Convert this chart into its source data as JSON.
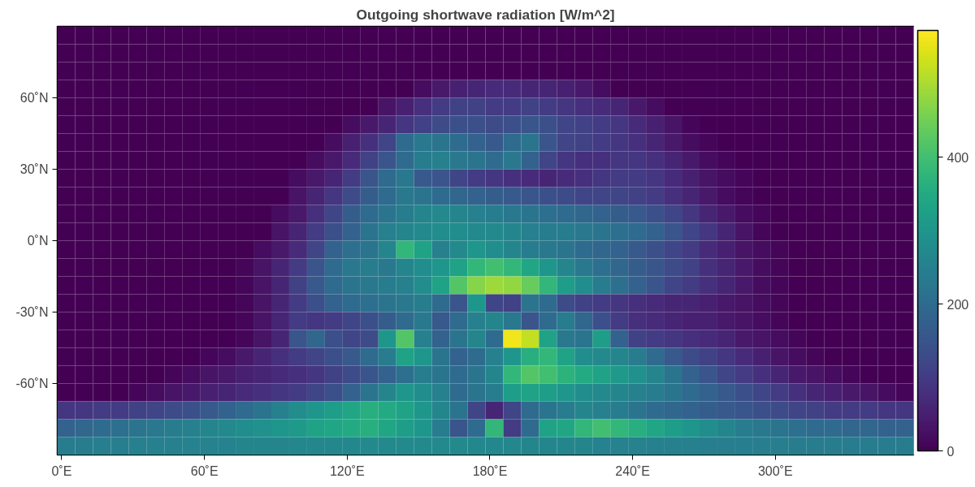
{
  "chart_data": {
    "type": "heatmap",
    "title": "Outgoing shortwave radiation [W/m^2]",
    "x": [
      1.875,
      9.375,
      16.875,
      24.375,
      31.875,
      39.375,
      46.875,
      54.375,
      61.875,
      69.375,
      76.875,
      84.375,
      91.875,
      99.375,
      106.875,
      114.375,
      121.875,
      129.375,
      136.875,
      144.375,
      151.875,
      159.375,
      166.875,
      174.375,
      181.875,
      189.375,
      196.875,
      204.375,
      211.875,
      219.375,
      226.875,
      234.375,
      241.875,
      249.375,
      256.875,
      264.375,
      271.875,
      279.375,
      286.875,
      294.375,
      301.875,
      309.375,
      316.875,
      324.375,
      331.875,
      339.375,
      346.875,
      354.375
    ],
    "y": [
      86.25,
      78.75,
      71.25,
      63.75,
      56.25,
      48.75,
      41.25,
      33.75,
      26.25,
      18.75,
      11.25,
      3.75,
      -3.75,
      -11.25,
      -18.75,
      -26.25,
      -33.75,
      -41.25,
      -48.75,
      -56.25,
      -63.75,
      -71.25,
      -78.75,
      -86.25
    ],
    "cells": [
      [
        0,
        0,
        0,
        0,
        0,
        0,
        0,
        0,
        0,
        0,
        0,
        0,
        0,
        0,
        0,
        0,
        0,
        0,
        0,
        0,
        0,
        0,
        0,
        0,
        0,
        0,
        0,
        0,
        0,
        0,
        0,
        0,
        0,
        0,
        0,
        0,
        0,
        0,
        0,
        0,
        0,
        0,
        0,
        0,
        0,
        0,
        0,
        0
      ],
      [
        0,
        0,
        0,
        0,
        0,
        0,
        0,
        0,
        0,
        0,
        0,
        0,
        0,
        0,
        0,
        0,
        0,
        0,
        0,
        0,
        0,
        0,
        0,
        0,
        0,
        0,
        0,
        0,
        0,
        0,
        0,
        0,
        0,
        0,
        0,
        0,
        0,
        0,
        0,
        0,
        0,
        0,
        0,
        0,
        0,
        0,
        0,
        0
      ],
      [
        0,
        0,
        0,
        0,
        0,
        0,
        0,
        0,
        0,
        0,
        0,
        0,
        0,
        0,
        0,
        0,
        0,
        0,
        0,
        0,
        0,
        0,
        0,
        0,
        0,
        0,
        0,
        0,
        0,
        0,
        0,
        0,
        0,
        0,
        0,
        0,
        0,
        0,
        0,
        0,
        0,
        0,
        0,
        0,
        0,
        0,
        0,
        0
      ],
      [
        0,
        0,
        0,
        0,
        0,
        0,
        0,
        0,
        0,
        0,
        0,
        0,
        0,
        0,
        0,
        0,
        0,
        0,
        0,
        0,
        20,
        40,
        50,
        60,
        70,
        70,
        60,
        60,
        50,
        40,
        20,
        0,
        0,
        0,
        0,
        0,
        0,
        0,
        0,
        0,
        0,
        0,
        0,
        0,
        0,
        0,
        0,
        0
      ],
      [
        0,
        0,
        0,
        0,
        0,
        0,
        0,
        0,
        0,
        0,
        0,
        0,
        0,
        0,
        0,
        0,
        0,
        0,
        30,
        50,
        80,
        100,
        110,
        110,
        100,
        100,
        110,
        100,
        90,
        80,
        70,
        60,
        40,
        20,
        0,
        0,
        0,
        0,
        0,
        0,
        0,
        0,
        0,
        0,
        0,
        0,
        0,
        0
      ],
      [
        0,
        0,
        0,
        0,
        0,
        0,
        0,
        0,
        0,
        0,
        0,
        0,
        0,
        0,
        0,
        0,
        20,
        40,
        60,
        90,
        110,
        130,
        140,
        140,
        130,
        140,
        150,
        140,
        120,
        110,
        100,
        90,
        70,
        50,
        30,
        10,
        0,
        0,
        0,
        0,
        0,
        0,
        0,
        0,
        0,
        0,
        0,
        0
      ],
      [
        0,
        0,
        0,
        0,
        0,
        0,
        0,
        0,
        0,
        0,
        0,
        0,
        0,
        0,
        0,
        20,
        50,
        80,
        120,
        200,
        230,
        220,
        200,
        180,
        160,
        200,
        220,
        150,
        120,
        110,
        100,
        90,
        80,
        60,
        40,
        20,
        10,
        0,
        0,
        0,
        0,
        0,
        0,
        0,
        0,
        0,
        0,
        0
      ],
      [
        0,
        0,
        0,
        0,
        0,
        0,
        0,
        0,
        0,
        0,
        0,
        0,
        0,
        0,
        20,
        40,
        70,
        110,
        150,
        200,
        240,
        250,
        230,
        220,
        200,
        230,
        180,
        120,
        90,
        80,
        80,
        90,
        90,
        80,
        60,
        40,
        20,
        10,
        0,
        0,
        0,
        0,
        0,
        0,
        0,
        0,
        0,
        0
      ],
      [
        0,
        0,
        0,
        0,
        0,
        0,
        0,
        0,
        0,
        0,
        0,
        0,
        0,
        20,
        40,
        60,
        100,
        150,
        200,
        230,
        160,
        150,
        120,
        100,
        90,
        80,
        70,
        60,
        70,
        80,
        90,
        100,
        100,
        90,
        70,
        50,
        30,
        20,
        10,
        0,
        0,
        0,
        0,
        0,
        0,
        0,
        0,
        0
      ],
      [
        0,
        0,
        0,
        0,
        0,
        0,
        0,
        0,
        0,
        0,
        0,
        0,
        0,
        30,
        60,
        90,
        130,
        170,
        200,
        230,
        220,
        200,
        190,
        180,
        170,
        160,
        150,
        140,
        130,
        120,
        120,
        120,
        110,
        100,
        80,
        60,
        40,
        20,
        10,
        0,
        0,
        0,
        0,
        0,
        0,
        0,
        0,
        0
      ],
      [
        0,
        0,
        0,
        0,
        0,
        0,
        0,
        0,
        0,
        0,
        0,
        0,
        20,
        40,
        80,
        120,
        170,
        200,
        220,
        240,
        260,
        270,
        260,
        250,
        240,
        230,
        220,
        210,
        200,
        190,
        180,
        170,
        160,
        140,
        120,
        90,
        60,
        40,
        20,
        10,
        0,
        0,
        0,
        0,
        0,
        0,
        0,
        0
      ],
      [
        0,
        0,
        0,
        0,
        0,
        0,
        0,
        0,
        0,
        0,
        0,
        0,
        30,
        60,
        100,
        140,
        180,
        220,
        250,
        260,
        270,
        280,
        280,
        270,
        270,
        260,
        250,
        240,
        240,
        230,
        220,
        210,
        200,
        180,
        150,
        120,
        90,
        60,
        30,
        10,
        0,
        0,
        0,
        0,
        0,
        0,
        0,
        0
      ],
      [
        0,
        0,
        0,
        0,
        0,
        0,
        0,
        0,
        0,
        0,
        0,
        20,
        40,
        70,
        120,
        180,
        210,
        220,
        260,
        380,
        330,
        250,
        270,
        300,
        280,
        260,
        240,
        230,
        220,
        200,
        190,
        180,
        160,
        140,
        120,
        100,
        70,
        50,
        30,
        20,
        10,
        0,
        0,
        0,
        0,
        0,
        0,
        0
      ],
      [
        0,
        0,
        0,
        0,
        0,
        0,
        0,
        0,
        0,
        0,
        10,
        30,
        60,
        100,
        150,
        200,
        230,
        240,
        230,
        260,
        280,
        300,
        330,
        380,
        400,
        380,
        340,
        300,
        260,
        230,
        210,
        190,
        170,
        150,
        130,
        110,
        80,
        60,
        40,
        20,
        10,
        0,
        0,
        0,
        0,
        0,
        0,
        0
      ],
      [
        0,
        0,
        0,
        0,
        0,
        0,
        0,
        0,
        0,
        0,
        10,
        30,
        60,
        110,
        160,
        200,
        220,
        230,
        240,
        250,
        280,
        330,
        420,
        470,
        490,
        480,
        440,
        380,
        320,
        280,
        240,
        210,
        180,
        150,
        120,
        100,
        80,
        60,
        40,
        20,
        10,
        0,
        0,
        0,
        0,
        0,
        0,
        0
      ],
      [
        0,
        0,
        0,
        0,
        0,
        0,
        0,
        0,
        0,
        0,
        10,
        30,
        60,
        100,
        140,
        180,
        200,
        210,
        220,
        230,
        240,
        200,
        150,
        300,
        120,
        110,
        220,
        200,
        130,
        110,
        100,
        90,
        80,
        70,
        60,
        60,
        50,
        40,
        30,
        20,
        10,
        0,
        0,
        0,
        0,
        0,
        0,
        0
      ],
      [
        0,
        0,
        0,
        0,
        0,
        0,
        0,
        0,
        0,
        0,
        10,
        30,
        60,
        100,
        90,
        100,
        120,
        140,
        170,
        200,
        230,
        160,
        200,
        250,
        260,
        230,
        150,
        200,
        240,
        190,
        140,
        100,
        80,
        70,
        60,
        50,
        50,
        40,
        30,
        20,
        10,
        0,
        0,
        0,
        0,
        0,
        0,
        0
      ],
      [
        0,
        0,
        0,
        0,
        0,
        0,
        0,
        0,
        0,
        0,
        10,
        30,
        60,
        150,
        190,
        140,
        120,
        130,
        300,
        420,
        250,
        180,
        220,
        260,
        200,
        560,
        520,
        330,
        230,
        220,
        320,
        180,
        110,
        100,
        90,
        80,
        70,
        60,
        40,
        30,
        20,
        10,
        0,
        0,
        0,
        0,
        0,
        0
      ],
      [
        0,
        0,
        0,
        0,
        0,
        0,
        0,
        0,
        10,
        20,
        40,
        60,
        80,
        100,
        120,
        140,
        160,
        200,
        240,
        330,
        300,
        220,
        180,
        200,
        250,
        300,
        360,
        380,
        330,
        280,
        270,
        260,
        240,
        200,
        160,
        130,
        110,
        90,
        70,
        50,
        30,
        20,
        10,
        0,
        0,
        0,
        0,
        0
      ],
      [
        0,
        0,
        0,
        0,
        0,
        0,
        10,
        20,
        30,
        40,
        50,
        60,
        70,
        80,
        90,
        110,
        130,
        150,
        180,
        210,
        240,
        220,
        200,
        220,
        260,
        380,
        420,
        400,
        370,
        350,
        330,
        310,
        290,
        260,
        220,
        180,
        150,
        120,
        100,
        80,
        60,
        40,
        30,
        20,
        10,
        0,
        0,
        0
      ],
      [
        0,
        0,
        0,
        0,
        10,
        20,
        30,
        40,
        50,
        60,
        70,
        80,
        90,
        100,
        120,
        140,
        180,
        220,
        260,
        300,
        280,
        250,
        200,
        220,
        240,
        320,
        330,
        320,
        300,
        280,
        270,
        260,
        250,
        240,
        220,
        200,
        180,
        160,
        140,
        120,
        100,
        80,
        60,
        50,
        40,
        30,
        20,
        10
      ],
      [
        90,
        90,
        100,
        100,
        110,
        120,
        130,
        140,
        160,
        180,
        200,
        220,
        250,
        280,
        300,
        320,
        340,
        360,
        350,
        330,
        300,
        260,
        220,
        120,
        60,
        120,
        200,
        220,
        240,
        260,
        250,
        240,
        220,
        200,
        190,
        180,
        170,
        160,
        150,
        140,
        130,
        120,
        110,
        100,
        100,
        100,
        90,
        90
      ],
      [
        180,
        190,
        200,
        210,
        220,
        230,
        240,
        250,
        260,
        270,
        280,
        290,
        300,
        310,
        330,
        340,
        350,
        360,
        340,
        320,
        300,
        240,
        150,
        200,
        380,
        100,
        200,
        330,
        340,
        380,
        400,
        380,
        360,
        340,
        320,
        300,
        280,
        260,
        240,
        230,
        220,
        210,
        200,
        200,
        190,
        190,
        180,
        180
      ],
      [
        240,
        240,
        245,
        245,
        250,
        250,
        250,
        255,
        255,
        255,
        260,
        260,
        260,
        265,
        265,
        265,
        265,
        270,
        270,
        270,
        270,
        270,
        270,
        265,
        265,
        265,
        260,
        260,
        260,
        260,
        255,
        255,
        255,
        250,
        250,
        250,
        245,
        245,
        245,
        245,
        245,
        240,
        240,
        240,
        240,
        240,
        240,
        240
      ]
    ],
    "xlim": [
      -1.875,
      358.125
    ],
    "ylim": [
      -90,
      90
    ],
    "xticks": [
      {
        "value": 0,
        "label": "0˚E"
      },
      {
        "value": 60,
        "label": "60˚E"
      },
      {
        "value": 120,
        "label": "120˚E"
      },
      {
        "value": 180,
        "label": "180˚E"
      },
      {
        "value": 240,
        "label": "240˚E"
      },
      {
        "value": 300,
        "label": "300˚E"
      }
    ],
    "yticks": [
      {
        "value": -60,
        "label": "-60˚N"
      },
      {
        "value": -30,
        "label": "-30˚N"
      },
      {
        "value": 0,
        "label": "0˚N"
      },
      {
        "value": 30,
        "label": "30˚N"
      },
      {
        "value": 60,
        "label": "60˚N"
      }
    ],
    "clim": [
      0,
      573
    ],
    "cticks": [
      0,
      200,
      400
    ]
  }
}
